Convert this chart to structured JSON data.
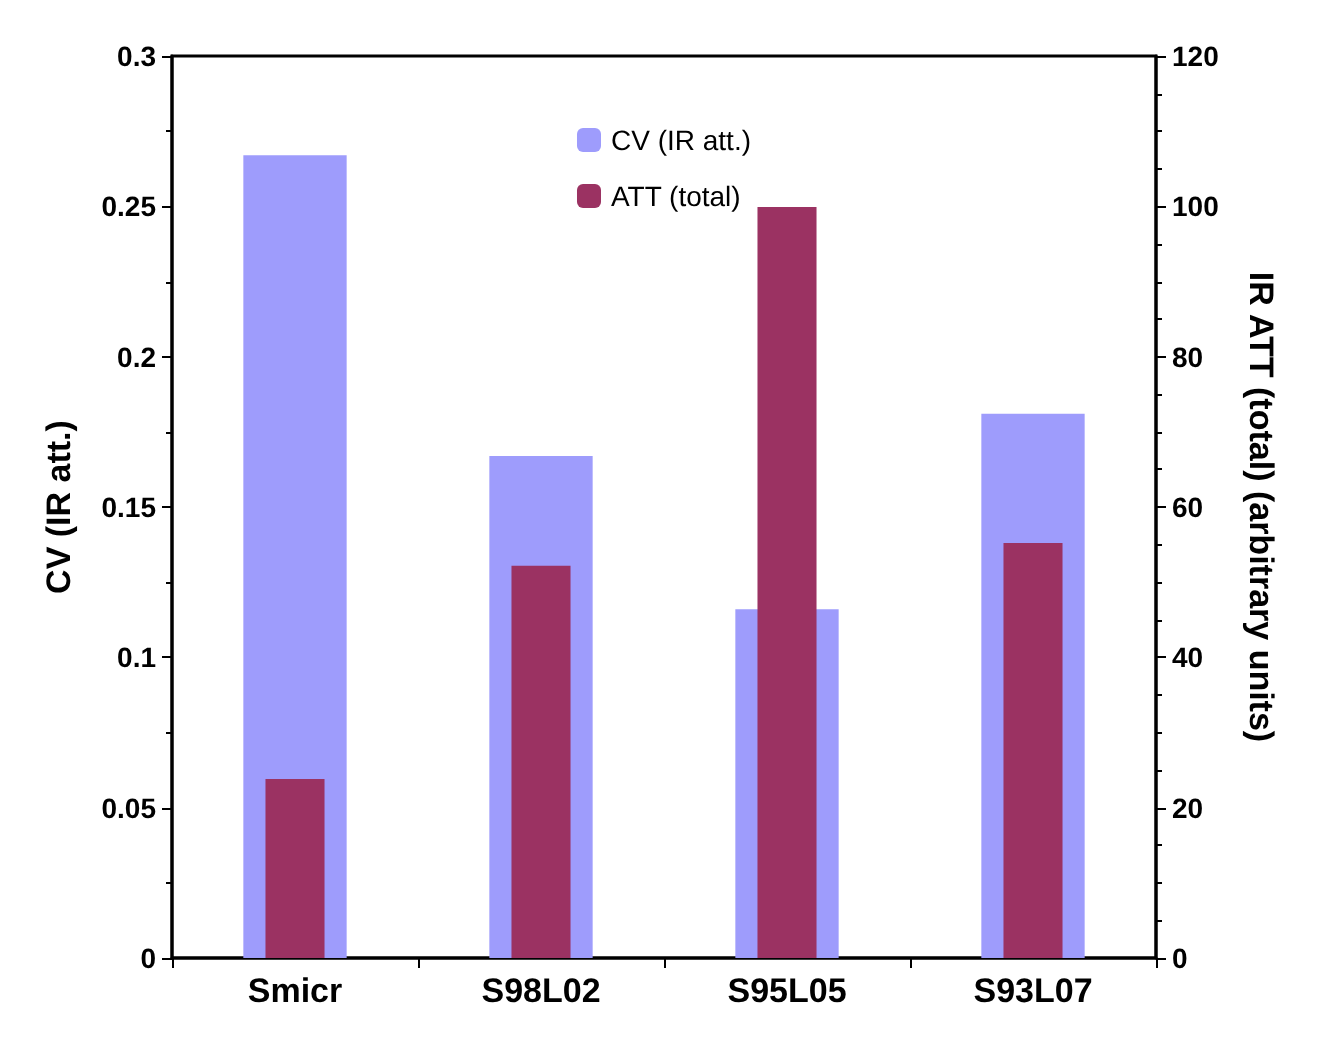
{
  "chart_data": {
    "type": "bar",
    "categories": [
      "Smicr",
      "S98L02",
      "S95L05",
      "S93L07"
    ],
    "ylabel": "CV (IR att.)",
    "y2label": "IR ATT (total) (arbitrary units)",
    "series": [
      {
        "name": "CV (IR att.)",
        "color": "#9e9cfc",
        "values": [
          0.267,
          0.167,
          0.116,
          0.181
        ]
      },
      {
        "name": "ATT (total)",
        "color": "#9b3262",
        "axis": "y2",
        "values": [
          23.8,
          52.2,
          99.9,
          55.2
        ]
      }
    ],
    "ylim": [
      0,
      0.3
    ],
    "yticks": [
      0,
      0.05,
      0.1,
      0.15,
      0.2,
      0.25,
      0.3
    ],
    "y2lim": [
      0,
      120
    ],
    "y2ticks": [
      0,
      20,
      40,
      60,
      80,
      100,
      120
    ],
    "grid": false,
    "legend": "top"
  }
}
